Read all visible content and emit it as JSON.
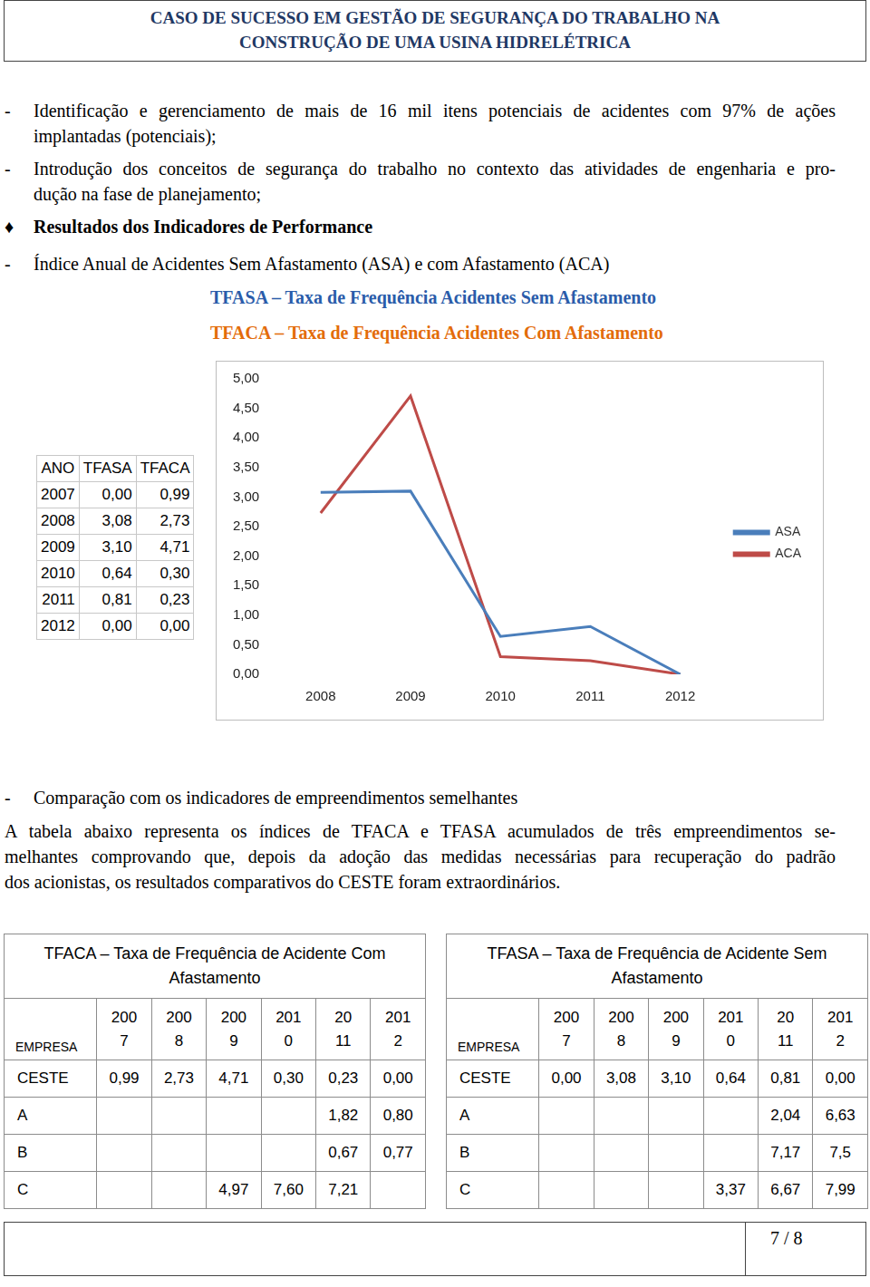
{
  "header": {
    "title_lines": [
      "CASO DE SUCESSO EM GESTÃO DE SEGURANÇA DO TRABALHO NA",
      "CONSTRUÇÃO DE UMA USINA HIDRELÉTRICA"
    ]
  },
  "items": [
    {
      "bullet": "-",
      "lines": [
        "Identificação e gerenciamento de mais de 16 mil itens potenciais de acidentes com 97% de ações",
        "implantadas (potenciais);"
      ]
    },
    {
      "bullet": "-",
      "lines": [
        "Introdução dos conceitos de segurança do trabalho no contexto das atividades de engenharia e pro-",
        "dução na fase de planejamento;"
      ]
    },
    {
      "bullet": "♦",
      "bold": true,
      "lines": [
        "Resultados dos Indicadores de Performance"
      ]
    },
    {
      "bullet": "-",
      "lines": [
        "Índice Anual de Acidentes Sem Afastamento (ASA) e com Afastamento (ACA)"
      ]
    }
  ],
  "indicator_titles": [
    {
      "text": "TFASA – Taxa de Frequência Acidentes Sem Afastamento",
      "color": "#2a5caa"
    },
    {
      "text": "TFACA – Taxa de Frequência Acidentes Com Afastamento",
      "color": "#e36c0a"
    }
  ],
  "annual_table": {
    "columns": [
      "ANO",
      "TFASA",
      "TFACA"
    ],
    "rows": [
      [
        "2007",
        "0,00",
        "0,99"
      ],
      [
        "2008",
        "3,08",
        "2,73"
      ],
      [
        "2009",
        "3,10",
        "4,71"
      ],
      [
        "2010",
        "0,64",
        "0,30"
      ],
      [
        "2011",
        "0,81",
        "0,23"
      ],
      [
        "2012",
        "0,00",
        "0,00"
      ]
    ]
  },
  "chart_data": {
    "type": "line",
    "categories": [
      "2008",
      "2009",
      "2010",
      "2011",
      "2012"
    ],
    "series": [
      {
        "name": "ASA",
        "color": "#4a7ebb",
        "values": [
          3.08,
          3.1,
          0.64,
          0.81,
          0.0
        ]
      },
      {
        "name": "ACA",
        "color": "#be4b48",
        "values": [
          2.73,
          4.71,
          0.3,
          0.23,
          0.0
        ]
      }
    ],
    "ylim": [
      0,
      5
    ],
    "yticks": [
      {
        "value": 0,
        "label": "0,00"
      },
      {
        "value": 0.5,
        "label": "0,50"
      },
      {
        "value": 1,
        "label": "1,00"
      },
      {
        "value": 1.5,
        "label": "1,50"
      },
      {
        "value": 2,
        "label": "2,00"
      },
      {
        "value": 2.5,
        "label": "2,50"
      },
      {
        "value": 3,
        "label": "3,00"
      },
      {
        "value": 3.5,
        "label": "3,50"
      },
      {
        "value": 4,
        "label": "4,00"
      },
      {
        "value": 4.5,
        "label": "4,50"
      },
      {
        "value": 5,
        "label": "5,00"
      }
    ],
    "grid": false,
    "legend": "right"
  },
  "comparison_item": {
    "bullet": "-",
    "lines": [
      "Comparação com os indicadores de empreendimentos semelhantes"
    ]
  },
  "paragraph": {
    "lines": [
      "A tabela abaixo representa os índices de TFACA e TFASA acumulados de três empreendimentos se-",
      "melhantes comprovando que, depois da adoção das medidas necessárias para recuperação do padrão",
      "dos acionistas, os resultados comparativos do CESTE foram extraordinários."
    ]
  },
  "comparison_tables": [
    {
      "title_lines": [
        "TFACA – Taxa de Frequência de Acidente Com",
        "Afastamento"
      ],
      "columns": [
        "EMPRESA",
        "2007",
        "2008",
        "2009",
        "2010",
        "2011",
        "2012"
      ],
      "rows": [
        [
          "CESTE",
          "0,99",
          "2,73",
          "4,71",
          "0,30",
          "0,23",
          "0,00"
        ],
        [
          "A",
          null,
          null,
          null,
          null,
          "1,82",
          "0,80"
        ],
        [
          "B",
          null,
          null,
          null,
          null,
          "0,67",
          "0,77"
        ],
        [
          "C",
          null,
          null,
          "4,97",
          "7,60",
          "7,21",
          null
        ]
      ]
    },
    {
      "title_lines": [
        "TFASA – Taxa de Frequência de Acidente Sem",
        "Afastamento"
      ],
      "columns": [
        "EMPRESA",
        "2007",
        "2008",
        "2009",
        "2010",
        "2011",
        "2012"
      ],
      "rows": [
        [
          "CESTE",
          "0,00",
          "3,08",
          "3,10",
          "0,64",
          "0,81",
          "0,00"
        ],
        [
          "A",
          null,
          null,
          null,
          null,
          "2,04",
          "6,63"
        ],
        [
          "B",
          null,
          null,
          null,
          null,
          "7,17",
          "7,5"
        ],
        [
          "C",
          null,
          null,
          null,
          "3,37",
          "6,67",
          "7,99"
        ]
      ]
    }
  ],
  "page_number": "7 / 8"
}
